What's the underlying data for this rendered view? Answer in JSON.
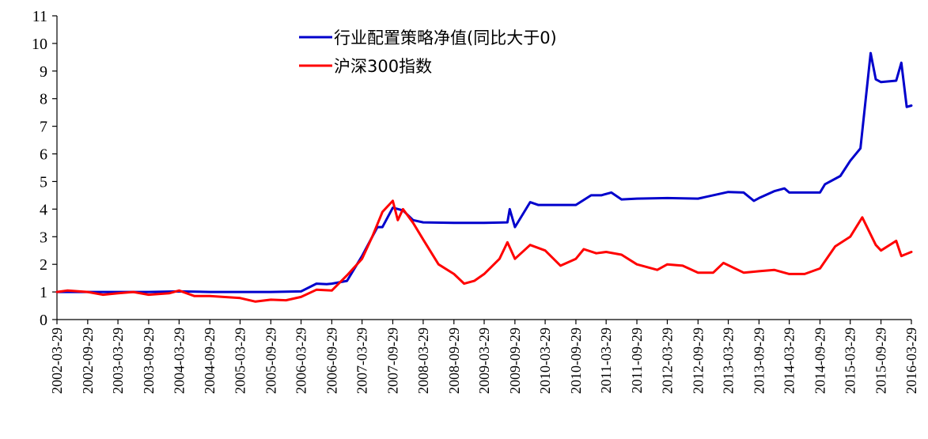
{
  "chart_data": {
    "type": "line",
    "title": "",
    "xlabel": "",
    "ylabel": "",
    "ylim": [
      0,
      11
    ],
    "yticks": [
      0,
      1,
      2,
      3,
      4,
      5,
      6,
      7,
      8,
      9,
      10,
      11
    ],
    "grid": false,
    "legend_position": "top-center",
    "x_tick_labels": [
      "2002-03-29",
      "2002-09-29",
      "2003-03-29",
      "2003-09-29",
      "2004-03-29",
      "2004-09-29",
      "2005-03-29",
      "2005-09-29",
      "2006-03-29",
      "2006-09-29",
      "2007-03-29",
      "2007-09-29",
      "2008-03-29",
      "2008-09-29",
      "2009-03-29",
      "2009-09-29",
      "2010-03-29",
      "2010-09-29",
      "2011-03-29",
      "2011-09-29",
      "2012-03-29",
      "2012-09-29",
      "2013-03-29",
      "2013-09-29",
      "2014-03-29",
      "2014-09-29",
      "2015-03-29",
      "2015-09-29",
      "2016-03-29"
    ],
    "x_start": "2002-03-29",
    "x_end": "2016-03-29",
    "series": [
      {
        "name": "行业配置策略净值(同比大于0)",
        "color": "#0000CC",
        "points": [
          [
            "2002-03-29",
            1.0
          ],
          [
            "2002-06-29",
            1.0
          ],
          [
            "2002-09-29",
            1.0
          ],
          [
            "2003-03-29",
            1.0
          ],
          [
            "2003-09-29",
            1.0
          ],
          [
            "2004-03-29",
            1.02
          ],
          [
            "2004-09-29",
            1.0
          ],
          [
            "2005-03-29",
            1.0
          ],
          [
            "2005-09-29",
            1.0
          ],
          [
            "2006-03-29",
            1.02
          ],
          [
            "2006-06-29",
            1.3
          ],
          [
            "2006-08-29",
            1.28
          ],
          [
            "2006-09-29",
            1.3
          ],
          [
            "2006-12-29",
            1.4
          ],
          [
            "2007-03-29",
            2.3
          ],
          [
            "2007-06-29",
            3.35
          ],
          [
            "2007-07-29",
            3.35
          ],
          [
            "2007-09-29",
            4.05
          ],
          [
            "2007-11-29",
            3.95
          ],
          [
            "2008-01-29",
            3.6
          ],
          [
            "2008-03-29",
            3.52
          ],
          [
            "2008-09-29",
            3.5
          ],
          [
            "2009-03-29",
            3.5
          ],
          [
            "2009-08-15",
            3.52
          ],
          [
            "2009-08-29",
            4.0
          ],
          [
            "2009-09-29",
            3.35
          ],
          [
            "2009-12-29",
            4.25
          ],
          [
            "2010-02-15",
            4.15
          ],
          [
            "2010-03-29",
            4.15
          ],
          [
            "2010-09-29",
            4.15
          ],
          [
            "2010-12-29",
            4.5
          ],
          [
            "2011-02-28",
            4.5
          ],
          [
            "2011-04-29",
            4.6
          ],
          [
            "2011-06-29",
            4.35
          ],
          [
            "2011-09-29",
            4.38
          ],
          [
            "2012-03-29",
            4.4
          ],
          [
            "2012-09-29",
            4.38
          ],
          [
            "2013-03-29",
            4.62
          ],
          [
            "2013-06-29",
            4.6
          ],
          [
            "2013-08-29",
            4.3
          ],
          [
            "2013-09-29",
            4.4
          ],
          [
            "2013-12-29",
            4.65
          ],
          [
            "2014-02-28",
            4.75
          ],
          [
            "2014-03-29",
            4.6
          ],
          [
            "2014-09-29",
            4.6
          ],
          [
            "2014-10-29",
            4.9
          ],
          [
            "2015-01-29",
            5.2
          ],
          [
            "2015-03-29",
            5.75
          ],
          [
            "2015-05-29",
            6.2
          ],
          [
            "2015-07-29",
            9.65
          ],
          [
            "2015-08-29",
            8.7
          ],
          [
            "2015-09-29",
            8.6
          ],
          [
            "2015-12-29",
            8.65
          ],
          [
            "2016-01-29",
            9.3
          ],
          [
            "2016-03-01",
            7.7
          ],
          [
            "2016-03-29",
            7.75
          ]
        ]
      },
      {
        "name": "沪深300指数",
        "color": "#FF0000",
        "points": [
          [
            "2002-03-29",
            1.0
          ],
          [
            "2002-05-29",
            1.05
          ],
          [
            "2002-09-29",
            1.0
          ],
          [
            "2002-12-29",
            0.9
          ],
          [
            "2003-03-29",
            0.95
          ],
          [
            "2003-06-29",
            1.0
          ],
          [
            "2003-09-29",
            0.9
          ],
          [
            "2004-01-29",
            0.95
          ],
          [
            "2004-03-29",
            1.05
          ],
          [
            "2004-06-29",
            0.85
          ],
          [
            "2004-09-29",
            0.85
          ],
          [
            "2005-03-29",
            0.78
          ],
          [
            "2005-06-29",
            0.65
          ],
          [
            "2005-09-29",
            0.72
          ],
          [
            "2005-12-29",
            0.7
          ],
          [
            "2006-03-29",
            0.82
          ],
          [
            "2006-06-29",
            1.08
          ],
          [
            "2006-09-29",
            1.05
          ],
          [
            "2006-12-29",
            1.6
          ],
          [
            "2007-03-29",
            2.2
          ],
          [
            "2007-05-29",
            3.0
          ],
          [
            "2007-07-29",
            3.9
          ],
          [
            "2007-09-29",
            4.3
          ],
          [
            "2007-10-29",
            3.6
          ],
          [
            "2007-11-29",
            4.0
          ],
          [
            "2008-01-29",
            3.5
          ],
          [
            "2008-03-29",
            2.9
          ],
          [
            "2008-06-29",
            2.0
          ],
          [
            "2008-09-29",
            1.65
          ],
          [
            "2008-11-29",
            1.3
          ],
          [
            "2009-01-29",
            1.4
          ],
          [
            "2009-03-29",
            1.65
          ],
          [
            "2009-06-29",
            2.2
          ],
          [
            "2009-08-15",
            2.8
          ],
          [
            "2009-09-29",
            2.2
          ],
          [
            "2009-12-29",
            2.7
          ],
          [
            "2010-03-29",
            2.5
          ],
          [
            "2010-06-29",
            1.95
          ],
          [
            "2010-09-29",
            2.2
          ],
          [
            "2010-11-15",
            2.55
          ],
          [
            "2011-01-29",
            2.4
          ],
          [
            "2011-03-29",
            2.45
          ],
          [
            "2011-06-29",
            2.35
          ],
          [
            "2011-09-29",
            2.0
          ],
          [
            "2012-01-29",
            1.8
          ],
          [
            "2012-03-29",
            2.0
          ],
          [
            "2012-06-29",
            1.95
          ],
          [
            "2012-09-29",
            1.7
          ],
          [
            "2012-12-29",
            1.7
          ],
          [
            "2013-02-28",
            2.05
          ],
          [
            "2013-06-29",
            1.7
          ],
          [
            "2013-09-29",
            1.75
          ],
          [
            "2013-12-29",
            1.8
          ],
          [
            "2014-03-29",
            1.65
          ],
          [
            "2014-06-29",
            1.65
          ],
          [
            "2014-09-29",
            1.85
          ],
          [
            "2014-12-29",
            2.65
          ],
          [
            "2015-03-29",
            3.0
          ],
          [
            "2015-06-09",
            3.7
          ],
          [
            "2015-08-29",
            2.7
          ],
          [
            "2015-09-29",
            2.5
          ],
          [
            "2015-12-29",
            2.85
          ],
          [
            "2016-01-29",
            2.3
          ],
          [
            "2016-03-29",
            2.45
          ]
        ]
      }
    ]
  }
}
